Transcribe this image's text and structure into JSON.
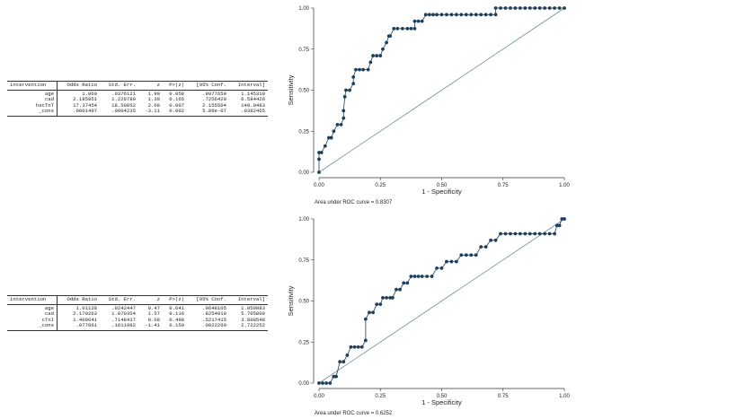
{
  "tables": [
    {
      "headers": [
        "intervention",
        "Odds Ratio",
        "Std. Err.",
        "z",
        "P>|z|",
        "[95% Conf.",
        "Interval]"
      ],
      "rows": [
        [
          "age",
          "1.069",
          ".0376121",
          "1.90",
          "0.058",
          ".9977659",
          "1.145319"
        ],
        [
          "cad",
          "2.185851",
          "1.229789",
          "1.39",
          "0.165",
          ".7256429",
          "6.584426"
        ],
        [
          "hscTnT",
          "17.37454",
          "18.50052",
          "2.68",
          "0.007",
          "2.155504",
          "140.0483"
        ],
        [
          "_cons",
          ".0001497",
          ".0004235",
          "-3.11",
          "0.002",
          "5.86e-07",
          ".0382465"
        ]
      ]
    },
    {
      "headers": [
        "intervention",
        "Odds Ratio",
        "Std. Err.",
        "z",
        "P>|z|",
        "[95% Conf.",
        "Interval]"
      ],
      "rows": [
        [
          "age",
          "1.01128",
          ".0242447",
          "0.47",
          "0.641",
          ".9648105",
          "1.059983"
        ],
        [
          "cad",
          "2.170263",
          "1.070354",
          "1.57",
          "0.116",
          ".8254819",
          "5.705809"
        ],
        [
          "cTnI",
          "1.409641",
          ".7148437",
          "0.68",
          "0.498",
          ".5217415",
          "3.808548"
        ],
        [
          "_cons",
          ".077861",
          ".1611982",
          "-1.41",
          "0.159",
          ".0022269",
          "2.722252"
        ]
      ]
    }
  ],
  "chart_data": [
    {
      "type": "line",
      "xlabel": "1 - Specificity",
      "ylabel": "Sensitivity",
      "xlim": [
        0,
        1
      ],
      "ylim": [
        0,
        1
      ],
      "xticks": [
        "0.00",
        "0.25",
        "0.50",
        "0.75",
        "1.00"
      ],
      "yticks": [
        "0.00",
        "0.25",
        "0.50",
        "0.75",
        "1.00"
      ],
      "grid": false,
      "footnote": "Area under ROC curve = 0.8307",
      "series": [
        {
          "x": [
            0,
            0,
            0,
            0.01,
            0.025,
            0.04,
            0.05,
            0.06,
            0.075,
            0.09,
            0.1,
            0.1,
            0.105,
            0.11,
            0.125,
            0.14,
            0.14,
            0.15,
            0.165,
            0.18,
            0.2,
            0.21,
            0.22,
            0.235,
            0.25,
            0.26,
            0.275,
            0.285,
            0.29,
            0.305,
            0.32,
            0.34,
            0.36,
            0.375,
            0.39,
            0.39,
            0.405,
            0.42,
            0.435,
            0.45,
            0.465,
            0.48,
            0.5,
            0.52,
            0.54,
            0.56,
            0.58,
            0.6,
            0.62,
            0.64,
            0.66,
            0.68,
            0.7,
            0.72,
            0.72,
            0.74,
            0.76,
            0.78,
            0.8,
            0.82,
            0.84,
            0.86,
            0.88,
            0.9,
            0.92,
            0.94,
            0.96,
            0.98,
            1.0
          ],
          "y": [
            0,
            0.08,
            0.12,
            0.12,
            0.16,
            0.21,
            0.21,
            0.25,
            0.29,
            0.29,
            0.33,
            0.375,
            0.46,
            0.5,
            0.5,
            0.54,
            0.58,
            0.625,
            0.625,
            0.625,
            0.625,
            0.67,
            0.71,
            0.71,
            0.71,
            0.75,
            0.79,
            0.83,
            0.83,
            0.875,
            0.875,
            0.875,
            0.875,
            0.875,
            0.875,
            0.92,
            0.92,
            0.92,
            0.96,
            0.96,
            0.96,
            0.96,
            0.96,
            0.96,
            0.96,
            0.96,
            0.96,
            0.96,
            0.96,
            0.96,
            0.96,
            0.96,
            0.96,
            0.96,
            1,
            1,
            1,
            1,
            1,
            1,
            1,
            1,
            1,
            1,
            1,
            1,
            1,
            1,
            1
          ]
        }
      ]
    },
    {
      "type": "line",
      "xlabel": "1 - Specificity",
      "ylabel": "Sensitivity",
      "xlim": [
        0,
        1
      ],
      "ylim": [
        0,
        1
      ],
      "xticks": [
        "0.00",
        "0.25",
        "0.50",
        "0.75",
        "1.00"
      ],
      "yticks": [
        "0.00",
        "0.25",
        "0.50",
        "0.75",
        "1.00"
      ],
      "grid": false,
      "footnote": "Area under ROC curve = 0.6252",
      "series": [
        {
          "x": [
            0,
            0.015,
            0.03,
            0.045,
            0.06,
            0.07,
            0.085,
            0.1,
            0.115,
            0.13,
            0.145,
            0.16,
            0.175,
            0.19,
            0.19,
            0.205,
            0.22,
            0.235,
            0.25,
            0.26,
            0.275,
            0.29,
            0.3,
            0.315,
            0.33,
            0.345,
            0.36,
            0.375,
            0.39,
            0.405,
            0.42,
            0.44,
            0.46,
            0.48,
            0.5,
            0.52,
            0.54,
            0.56,
            0.58,
            0.6,
            0.62,
            0.64,
            0.66,
            0.68,
            0.7,
            0.72,
            0.74,
            0.76,
            0.78,
            0.8,
            0.82,
            0.84,
            0.86,
            0.88,
            0.9,
            0.92,
            0.94,
            0.96,
            0.97,
            0.98,
            0.99,
            1.0
          ],
          "y": [
            0,
            0,
            0,
            0,
            0.04,
            0.04,
            0.13,
            0.13,
            0.17,
            0.22,
            0.22,
            0.22,
            0.22,
            0.26,
            0.39,
            0.43,
            0.43,
            0.48,
            0.48,
            0.52,
            0.52,
            0.52,
            0.52,
            0.57,
            0.57,
            0.61,
            0.61,
            0.65,
            0.65,
            0.65,
            0.65,
            0.65,
            0.65,
            0.7,
            0.7,
            0.74,
            0.74,
            0.74,
            0.78,
            0.78,
            0.78,
            0.78,
            0.83,
            0.83,
            0.87,
            0.87,
            0.91,
            0.91,
            0.91,
            0.91,
            0.91,
            0.91,
            0.91,
            0.91,
            0.91,
            0.91,
            0.91,
            0.91,
            0.96,
            0.96,
            1,
            1
          ]
        }
      ]
    }
  ]
}
